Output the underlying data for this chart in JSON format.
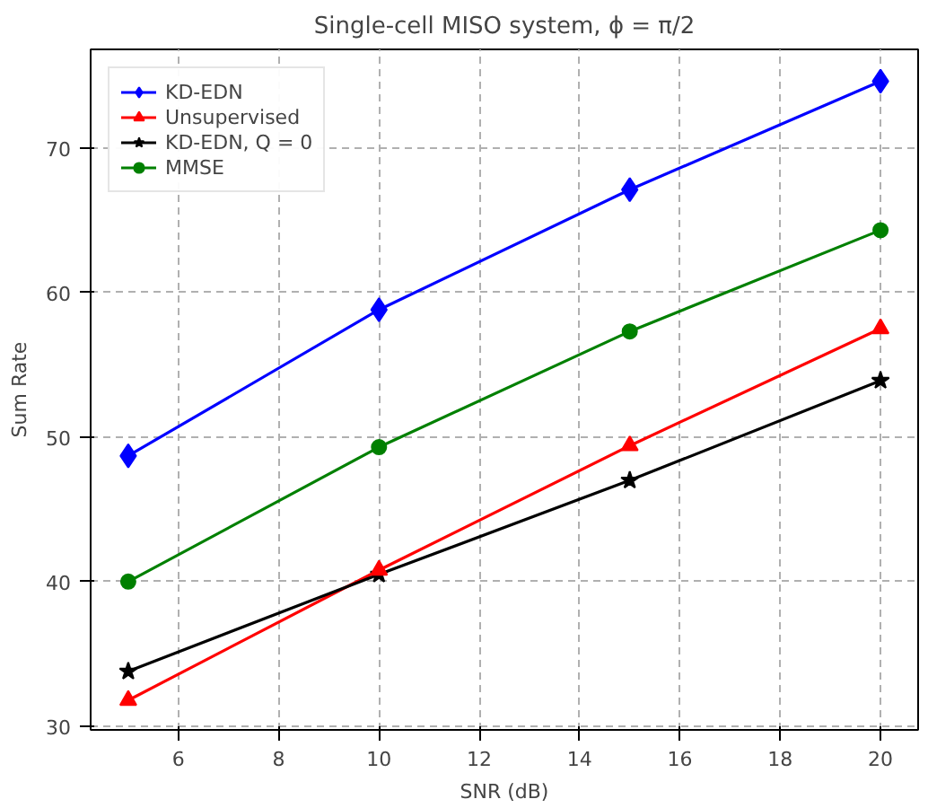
{
  "chart_data": {
    "type": "line",
    "title": "Single-cell MISO system, ϕ = π/2",
    "xlabel": "SNR (dB)",
    "ylabel": "Sum Rate",
    "x": [
      5,
      10,
      15,
      20
    ],
    "series": [
      {
        "name": "KD-EDN",
        "color": "#0000ff",
        "marker": "diamond",
        "values": [
          48.7,
          58.8,
          67.1,
          74.6
        ]
      },
      {
        "name": "Unsupervised",
        "color": "#ff0000",
        "marker": "triangle",
        "values": [
          31.8,
          40.8,
          49.4,
          57.5
        ]
      },
      {
        "name": "KD-EDN, Q = 0",
        "color": "#000000",
        "marker": "star",
        "values": [
          33.8,
          40.5,
          47.0,
          53.9
        ]
      },
      {
        "name": "MMSE",
        "color": "#008000",
        "marker": "circle",
        "values": [
          40.0,
          49.3,
          57.3,
          64.3
        ]
      }
    ],
    "xlim": [
      4.25,
      20.75
    ],
    "ylim": [
      29.75,
      76.8
    ],
    "xticks": [
      6,
      8,
      10,
      12,
      14,
      16,
      18,
      20
    ],
    "yticks": [
      30,
      40,
      50,
      60,
      70
    ],
    "grid": true,
    "legend": "top left",
    "line_style": "solid"
  }
}
